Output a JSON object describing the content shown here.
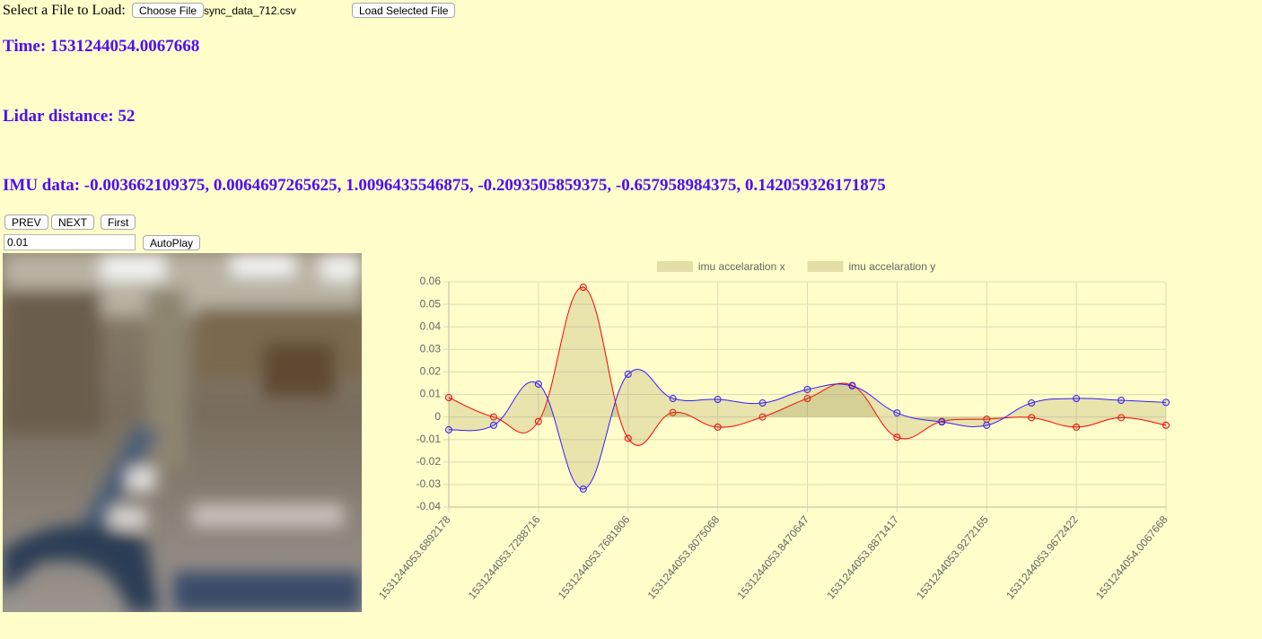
{
  "file_loader": {
    "label": "Select a File to Load:",
    "choose_button": "Choose File",
    "file_name": "sync_data_712.csv",
    "load_button": "Load Selected File"
  },
  "readouts": {
    "time": "Time: 1531244054.0067668",
    "lidar": "Lidar distance: 52",
    "imu": "IMU data: -0.003662109375, 0.0064697265625, 1.0096435546875, -0.2093505859375, -0.657958984375, 0.142059326171875"
  },
  "controls": {
    "prev": "PREV",
    "next": "NEXT",
    "first": "First",
    "step_input": "0.01",
    "autoplay": "AutoPlay"
  },
  "chart_data": {
    "type": "line",
    "categories": [
      "1531244053.6892178",
      null,
      "1531244053.7288716",
      null,
      "1531244053.7681806",
      null,
      "1531244053.8075068",
      null,
      "1531244053.8470647",
      null,
      "1531244053.8871417",
      null,
      "1531244053.9272165",
      null,
      "1531244053.9672422",
      null,
      "1531244054.0067668"
    ],
    "series": [
      {
        "name": "imu accelaration x",
        "color": "#ff0000",
        "values": [
          0.0086,
          0.0,
          -0.002,
          0.0576,
          -0.0095,
          0.002,
          -0.0045,
          0.0,
          0.0082,
          0.014,
          -0.009,
          -0.002,
          -0.001,
          -0.0003,
          -0.0045,
          -0.0003,
          -0.00366
        ]
      },
      {
        "name": "imu accelaration y",
        "color": "#3a1cff",
        "values": [
          -0.0057,
          -0.0037,
          0.0146,
          -0.032,
          0.019,
          0.0082,
          0.0078,
          0.0062,
          0.0122,
          0.0138,
          0.0018,
          -0.0022,
          -0.0037,
          0.0062,
          0.0082,
          0.0074,
          0.00647
        ]
      }
    ],
    "ylim": [
      -0.04,
      0.06
    ],
    "yticks": [
      -0.04,
      -0.03,
      -0.02,
      -0.01,
      0,
      0.01,
      0.02,
      0.03,
      0.04,
      0.05,
      0.06
    ],
    "grid": true,
    "legend": "top"
  }
}
